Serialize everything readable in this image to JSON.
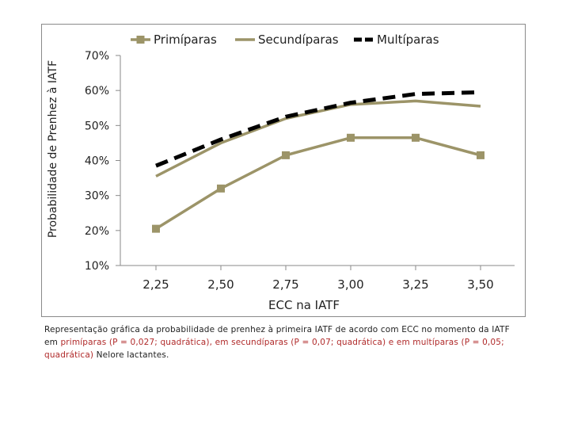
{
  "chart_data": {
    "type": "line",
    "title": "",
    "xlabel": "ECC na IATF",
    "ylabel": "Probabilidade de Prenhez à IATF",
    "categories": [
      "2,25",
      "2,50",
      "2,75",
      "3,00",
      "3,25",
      "3,50"
    ],
    "y_ticks": [
      "10%",
      "20%",
      "30%",
      "40%",
      "50%",
      "60%",
      "70%"
    ],
    "ylim": [
      10,
      70
    ],
    "series": [
      {
        "name": "Primíparas",
        "values": [
          20.5,
          32.0,
          41.5,
          46.5,
          46.5,
          41.5
        ],
        "color": "#9c9468",
        "style": "solid-markers"
      },
      {
        "name": "Secundíparas",
        "values": [
          35.5,
          45.0,
          52.0,
          56.0,
          57.0,
          55.5
        ],
        "color": "#9c9468",
        "style": "solid"
      },
      {
        "name": "Multíparas",
        "values": [
          38.5,
          46.0,
          52.5,
          56.5,
          59.0,
          59.5
        ],
        "color": "#000000",
        "style": "dashed"
      }
    ],
    "legend_position": "top"
  },
  "caption": {
    "line1": "Representação gráfica da probabilidade de prenhez à primeira IATF de acordo com ECC no momento da IATF",
    "line2_prefix": "em ",
    "line2_red": "primíparas (P = 0,027; quadrática), em secundíparas (P = 0,07; quadrática) e em multíparas (P = 0,05;",
    "line3_red": "quadrática)",
    "line3_suffix": " Nelore lactantes."
  }
}
